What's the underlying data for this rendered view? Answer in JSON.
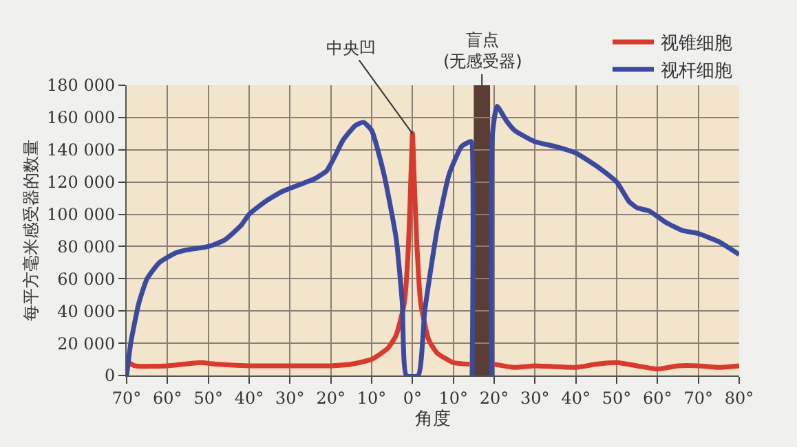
{
  "chart_data": {
    "type": "line",
    "xlabel": "角度",
    "ylabel": "每平方毫米感受器的数量",
    "xlim": [
      -70,
      80
    ],
    "xticks": [
      {
        "value": -70,
        "label": "70°"
      },
      {
        "value": -60,
        "label": "60°"
      },
      {
        "value": -50,
        "label": "50°"
      },
      {
        "value": -40,
        "label": "40°"
      },
      {
        "value": -30,
        "label": "30°"
      },
      {
        "value": -20,
        "label": "20°"
      },
      {
        "value": -10,
        "label": "10°"
      },
      {
        "value": 0,
        "label": "0°"
      },
      {
        "value": 10,
        "label": "10°"
      },
      {
        "value": 20,
        "label": "20°"
      },
      {
        "value": 30,
        "label": "30°"
      },
      {
        "value": 40,
        "label": "40°"
      },
      {
        "value": 50,
        "label": "50°"
      },
      {
        "value": 60,
        "label": "60°"
      },
      {
        "value": 70,
        "label": "70°"
      },
      {
        "value": 80,
        "label": "80°"
      }
    ],
    "ylim": [
      0,
      180000
    ],
    "yticks": [
      {
        "value": 0,
        "label": "0"
      },
      {
        "value": 20000,
        "label": "20 000"
      },
      {
        "value": 40000,
        "label": "40 000"
      },
      {
        "value": 60000,
        "label": "60 000"
      },
      {
        "value": 80000,
        "label": "80 000"
      },
      {
        "value": 100000,
        "label": "100 000"
      },
      {
        "value": 120000,
        "label": "120 000"
      },
      {
        "value": 140000,
        "label": "140 000"
      },
      {
        "value": 160000,
        "label": "160 000"
      },
      {
        "value": 180000,
        "label": "180 000"
      }
    ],
    "grid": true,
    "legend": "top right",
    "marker": "none",
    "line_style": "solid",
    "series": [
      {
        "name": "视锥细胞",
        "color": "#d83a2e",
        "x": [
          -70,
          -68,
          -60,
          -52,
          -48,
          -40,
          -30,
          -20,
          -15,
          -10,
          -6,
          -4,
          -2,
          -1,
          -0.3,
          0,
          0.3,
          1,
          2,
          4,
          6,
          10,
          14,
          15,
          19,
          20,
          25,
          30,
          40,
          45,
          50,
          55,
          60,
          65,
          70,
          75,
          80
        ],
        "values": [
          9000,
          6000,
          6000,
          8000,
          7000,
          6000,
          6000,
          6000,
          7000,
          10000,
          17000,
          25000,
          45000,
          80000,
          130000,
          150000,
          130000,
          85000,
          45000,
          22000,
          14000,
          8000,
          7000,
          null,
          null,
          7000,
          5000,
          6000,
          5000,
          7000,
          8000,
          6000,
          4000,
          6000,
          6000,
          5000,
          6000
        ]
      },
      {
        "name": "视杆细胞",
        "color": "#3b4a9e",
        "x": [
          -70,
          -69,
          -67,
          -65,
          -62,
          -58,
          -55,
          -50,
          -46,
          -42,
          -40,
          -36,
          -32,
          -28,
          -24,
          -21,
          -19,
          -17,
          -14,
          -12,
          -10,
          -7,
          -4,
          -2.5,
          -1.5,
          1.4,
          3,
          6,
          9,
          12,
          14,
          14.4,
          14.6,
          17,
          19.4,
          19.6,
          20.7,
          23,
          25,
          30,
          35,
          40,
          45,
          50,
          53,
          55,
          58,
          62,
          66,
          70,
          75,
          80
        ],
        "values": [
          0,
          20000,
          45000,
          60000,
          70000,
          76000,
          78000,
          80000,
          84000,
          93000,
          100000,
          108000,
          114000,
          118000,
          122000,
          127000,
          136000,
          146000,
          155000,
          157000,
          152000,
          125000,
          85000,
          45000,
          0,
          0,
          40000,
          90000,
          125000,
          142000,
          145000,
          145000,
          0,
          null,
          0,
          150000,
          167000,
          158000,
          152000,
          145000,
          142000,
          138000,
          130000,
          120000,
          108000,
          104000,
          102000,
          95000,
          90000,
          88000,
          83000,
          75000
        ]
      }
    ],
    "bands": [
      {
        "axis": "x",
        "from": 15,
        "to": 19,
        "color": "#5a3e36",
        "label": "盲点\n(无感受器)"
      }
    ],
    "annotations": [
      {
        "text": "中央凹",
        "x": 0,
        "y": 150000
      }
    ]
  }
}
